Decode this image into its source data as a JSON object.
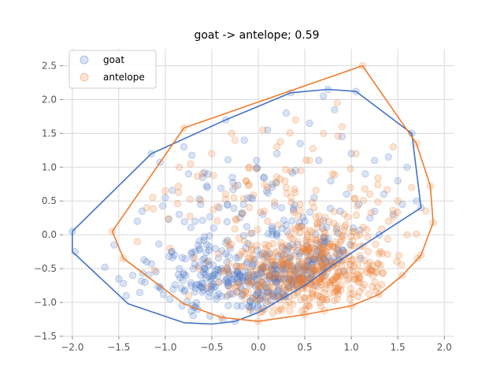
{
  "chart_data": {
    "type": "scatter",
    "title": "goat -> antelope; 0.59",
    "xlabel": "",
    "ylabel": "",
    "xlim": [
      -2.1,
      2.1
    ],
    "ylim": [
      -1.5,
      2.75
    ],
    "x_ticks": [
      -2.0,
      -1.5,
      -1.0,
      -0.5,
      0.0,
      0.5,
      1.0,
      1.5,
      2.0
    ],
    "x_tick_labels": [
      "−2.0",
      "−1.5",
      "−1.0",
      "−0.5",
      "0.0",
      "0.5",
      "1.0",
      "1.5",
      "2.0"
    ],
    "y_ticks": [
      -1.5,
      -1.0,
      -0.5,
      0.0,
      0.5,
      1.0,
      1.5,
      2.0,
      2.5
    ],
    "y_tick_labels": [
      "−1.5",
      "−1.0",
      "−0.5",
      "0.0",
      "0.5",
      "1.0",
      "1.5",
      "2.0",
      "2.5"
    ],
    "grid": true,
    "legend_position": "top-left",
    "series": [
      {
        "name": "goat",
        "color": "#4472c4",
        "hull": [
          [
            -2.0,
            0.05
          ],
          [
            -1.15,
            1.2
          ],
          [
            -0.35,
            1.7
          ],
          [
            0.35,
            2.1
          ],
          [
            0.75,
            2.15
          ],
          [
            1.05,
            2.12
          ],
          [
            1.65,
            1.5
          ],
          [
            1.75,
            0.4
          ],
          [
            1.3,
            0.0
          ],
          [
            0.8,
            -0.45
          ],
          [
            0.5,
            -0.75
          ],
          [
            0.0,
            -1.15
          ],
          [
            -0.25,
            -1.28
          ],
          [
            -0.5,
            -1.32
          ],
          [
            -0.8,
            -1.3
          ],
          [
            -1.4,
            -1.02
          ],
          [
            -2.0,
            -0.25
          ]
        ],
        "points": [
          [
            -2.0,
            0.05
          ],
          [
            -1.97,
            -0.25
          ],
          [
            -1.65,
            -0.48
          ],
          [
            -1.55,
            -0.15
          ],
          [
            -1.5,
            -0.65
          ],
          [
            -1.45,
            -0.72
          ],
          [
            -1.42,
            -0.9
          ],
          [
            -1.35,
            -0.6
          ],
          [
            -1.3,
            0.2
          ],
          [
            -1.25,
            0.35
          ],
          [
            -1.2,
            -0.4
          ],
          [
            -1.15,
            1.2
          ],
          [
            -1.1,
            -0.55
          ],
          [
            -1.05,
            -0.8
          ],
          [
            -1.0,
            0.55
          ],
          [
            -0.95,
            -0.95
          ],
          [
            -0.9,
            -0.3
          ],
          [
            -0.85,
            0.3
          ],
          [
            -0.82,
            -1.05
          ],
          [
            -0.8,
            1.3
          ],
          [
            -0.78,
            -0.6
          ],
          [
            -0.75,
            0.9
          ],
          [
            -0.72,
            -0.75
          ],
          [
            -0.7,
            -0.5
          ],
          [
            -0.68,
            0.2
          ],
          [
            -0.65,
            -1.1
          ],
          [
            -0.62,
            0.45
          ],
          [
            -0.6,
            -0.85
          ],
          [
            -0.58,
            -0.35
          ],
          [
            -0.55,
            0.7
          ],
          [
            -0.52,
            -1.2
          ],
          [
            -0.5,
            -0.65
          ],
          [
            -0.48,
            0.1
          ],
          [
            -0.45,
            -0.95
          ],
          [
            -0.42,
            0.4
          ],
          [
            -0.4,
            -0.5
          ],
          [
            -0.38,
            -1.25
          ],
          [
            -0.35,
            1.7
          ],
          [
            -0.32,
            -0.75
          ],
          [
            -0.3,
            -0.2
          ],
          [
            -0.28,
            0.85
          ],
          [
            -0.25,
            -1.28
          ],
          [
            -0.22,
            -0.55
          ],
          [
            -0.2,
            0.25
          ],
          [
            -0.18,
            -0.9
          ],
          [
            -0.15,
            1.4
          ],
          [
            -0.12,
            -0.4
          ],
          [
            -0.1,
            -1.05
          ],
          [
            -0.08,
            0.55
          ],
          [
            -0.05,
            -0.7
          ],
          [
            -0.02,
            1.1
          ],
          [
            0.0,
            -0.85
          ],
          [
            0.02,
            -0.3
          ],
          [
            0.05,
            0.3
          ],
          [
            0.08,
            -1.0
          ],
          [
            0.1,
            1.55
          ],
          [
            0.12,
            -0.6
          ],
          [
            0.15,
            0.75
          ],
          [
            0.18,
            -0.45
          ],
          [
            0.2,
            1.2
          ],
          [
            0.22,
            -0.9
          ],
          [
            0.25,
            0.4
          ],
          [
            0.28,
            -0.65
          ],
          [
            0.3,
            1.8
          ],
          [
            0.32,
            -0.2
          ],
          [
            0.35,
            2.1
          ],
          [
            0.38,
            -0.8
          ],
          [
            0.4,
            0.95
          ],
          [
            0.42,
            -0.5
          ],
          [
            0.45,
            1.35
          ],
          [
            0.48,
            -0.7
          ],
          [
            0.5,
            0.2
          ],
          [
            0.52,
            -0.6
          ],
          [
            0.55,
            1.65
          ],
          [
            0.58,
            -0.4
          ],
          [
            0.6,
            0.55
          ],
          [
            0.62,
            -0.75
          ],
          [
            0.65,
            1.1
          ],
          [
            0.68,
            -0.3
          ],
          [
            0.7,
            2.05
          ],
          [
            0.72,
            -0.6
          ],
          [
            0.75,
            2.15
          ],
          [
            0.78,
            0.8
          ],
          [
            0.8,
            -0.45
          ],
          [
            0.82,
            1.85
          ],
          [
            0.85,
            -0.2
          ],
          [
            0.88,
            0.35
          ],
          [
            0.9,
            1.45
          ],
          [
            0.92,
            -0.55
          ],
          [
            0.95,
            0.6
          ],
          [
            1.0,
            1.2
          ],
          [
            1.02,
            0.1
          ],
          [
            1.05,
            2.12
          ],
          [
            1.08,
            0.45
          ],
          [
            1.1,
            -0.35
          ],
          [
            1.15,
            0.9
          ],
          [
            1.2,
            0.25
          ],
          [
            1.25,
            1.1
          ],
          [
            1.3,
            0.0
          ],
          [
            1.35,
            0.6
          ],
          [
            1.4,
            1.15
          ],
          [
            1.45,
            0.3
          ],
          [
            1.5,
            0.8
          ],
          [
            1.55,
            0.45
          ],
          [
            1.6,
            1.0
          ],
          [
            1.65,
            1.5
          ],
          [
            1.7,
            0.5
          ],
          [
            1.75,
            0.4
          ]
        ],
        "density": [
          {
            "n": 160,
            "cx": 0.2,
            "cy": -0.7,
            "sx": 0.35,
            "sy": 0.28
          },
          {
            "n": 120,
            "cx": -0.5,
            "cy": -0.6,
            "sx": 0.3,
            "sy": 0.3
          },
          {
            "n": 90,
            "cx": 0.7,
            "cy": -0.45,
            "sx": 0.3,
            "sy": 0.3
          },
          {
            "n": 60,
            "cx": -0.2,
            "cy": 0.4,
            "sx": 0.55,
            "sy": 0.45
          }
        ]
      },
      {
        "name": "antelope",
        "color": "#ed7d31",
        "hull": [
          [
            -1.57,
            0.05
          ],
          [
            -0.8,
            1.58
          ],
          [
            1.12,
            2.5
          ],
          [
            1.7,
            1.35
          ],
          [
            1.85,
            0.72
          ],
          [
            1.88,
            0.18
          ],
          [
            1.75,
            -0.3
          ],
          [
            1.55,
            -0.6
          ],
          [
            1.3,
            -0.88
          ],
          [
            1.0,
            -1.05
          ],
          [
            0.5,
            -1.18
          ],
          [
            0.0,
            -1.28
          ],
          [
            -0.4,
            -1.22
          ],
          [
            -0.8,
            -1.02
          ],
          [
            -1.45,
            -0.35
          ]
        ],
        "points": [
          [
            -1.57,
            0.05
          ],
          [
            -1.45,
            -0.35
          ],
          [
            -1.3,
            -0.1
          ],
          [
            -1.2,
            0.4
          ],
          [
            -1.0,
            0.65
          ],
          [
            -0.95,
            -0.2
          ],
          [
            -0.85,
            1.0
          ],
          [
            -0.8,
            1.58
          ],
          [
            -0.75,
            -0.9
          ],
          [
            -0.6,
            0.9
          ],
          [
            -0.55,
            -0.4
          ],
          [
            -0.5,
            1.2
          ],
          [
            -0.4,
            -1.22
          ],
          [
            -0.35,
            0.6
          ],
          [
            -0.25,
            1.4
          ],
          [
            -0.2,
            -0.3
          ],
          [
            -0.1,
            1.0
          ],
          [
            0.0,
            -1.28
          ],
          [
            0.05,
            1.55
          ],
          [
            0.1,
            0.2
          ],
          [
            0.2,
            1.3
          ],
          [
            0.3,
            0.7
          ],
          [
            0.4,
            1.7
          ],
          [
            0.5,
            -1.18
          ],
          [
            0.55,
            1.1
          ],
          [
            0.6,
            0.4
          ],
          [
            0.7,
            1.5
          ],
          [
            0.8,
            0.9
          ],
          [
            0.85,
            1.95
          ],
          [
            0.9,
            1.6
          ],
          [
            1.0,
            -1.05
          ],
          [
            1.05,
            1.2
          ],
          [
            1.12,
            2.5
          ],
          [
            1.2,
            0.6
          ],
          [
            1.3,
            -0.88
          ],
          [
            1.4,
            0.2
          ],
          [
            1.45,
            1.3
          ],
          [
            1.5,
            0.5
          ],
          [
            1.55,
            -0.6
          ],
          [
            1.6,
            0.0
          ],
          [
            1.65,
            0.7
          ],
          [
            1.7,
            1.35
          ],
          [
            1.75,
            -0.3
          ],
          [
            1.8,
            0.35
          ],
          [
            1.85,
            0.72
          ],
          [
            1.88,
            0.18
          ]
        ],
        "density": [
          {
            "n": 330,
            "cx": 0.5,
            "cy": -0.6,
            "sx": 0.45,
            "sy": 0.28
          },
          {
            "n": 140,
            "cx": 0.8,
            "cy": -0.3,
            "sx": 0.35,
            "sy": 0.35
          },
          {
            "n": 90,
            "cx": 0.2,
            "cy": 0.5,
            "sx": 0.6,
            "sy": 0.45
          }
        ]
      }
    ]
  }
}
